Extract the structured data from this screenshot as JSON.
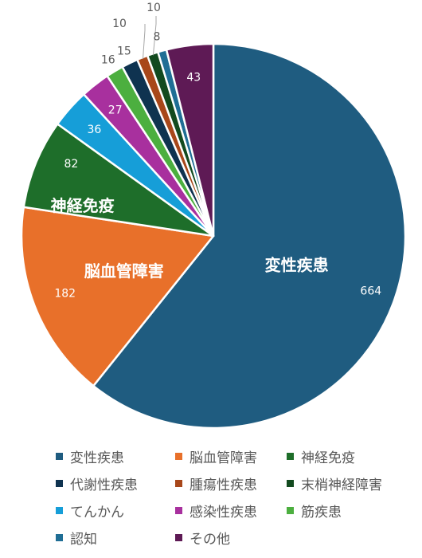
{
  "chart_data": {
    "type": "pie",
    "title": "",
    "legend_position": "bottom",
    "slices": [
      {
        "name": "変性疾患",
        "value": 664,
        "color": "#1F5C80"
      },
      {
        "name": "脳血管障害",
        "value": 182,
        "color": "#E8702A"
      },
      {
        "name": "神経免疫",
        "value": 82,
        "color": "#1E6E2A"
      },
      {
        "name": "代謝性疾患",
        "value": 15,
        "color": "#0F3350"
      },
      {
        "name": "腫瘍性疾患",
        "value": 10,
        "color": "#A8471A"
      },
      {
        "name": "末梢神経障害",
        "value": 10,
        "color": "#124A1F"
      },
      {
        "name": "てんかん",
        "value": 36,
        "color": "#169ED8"
      },
      {
        "name": "感染性疾患",
        "value": 27,
        "color": "#A8309E"
      },
      {
        "name": "筋疾患",
        "value": 16,
        "color": "#4CAF3F"
      },
      {
        "name": "認知",
        "value": 8,
        "color": "#1F6E95"
      },
      {
        "name": "その他",
        "value": 43,
        "color": "#5E1A55"
      }
    ],
    "draw_order": [
      "変性疾患",
      "脳血管障害",
      "神経免疫",
      "てんかん",
      "感染性疾患",
      "筋疾患",
      "代謝性疾患",
      "腫瘍性疾患",
      "末梢神経障害",
      "認知",
      "その他"
    ],
    "inner_labels": [
      "変性疾患",
      "脳血管障害",
      "神経免疫"
    ]
  }
}
